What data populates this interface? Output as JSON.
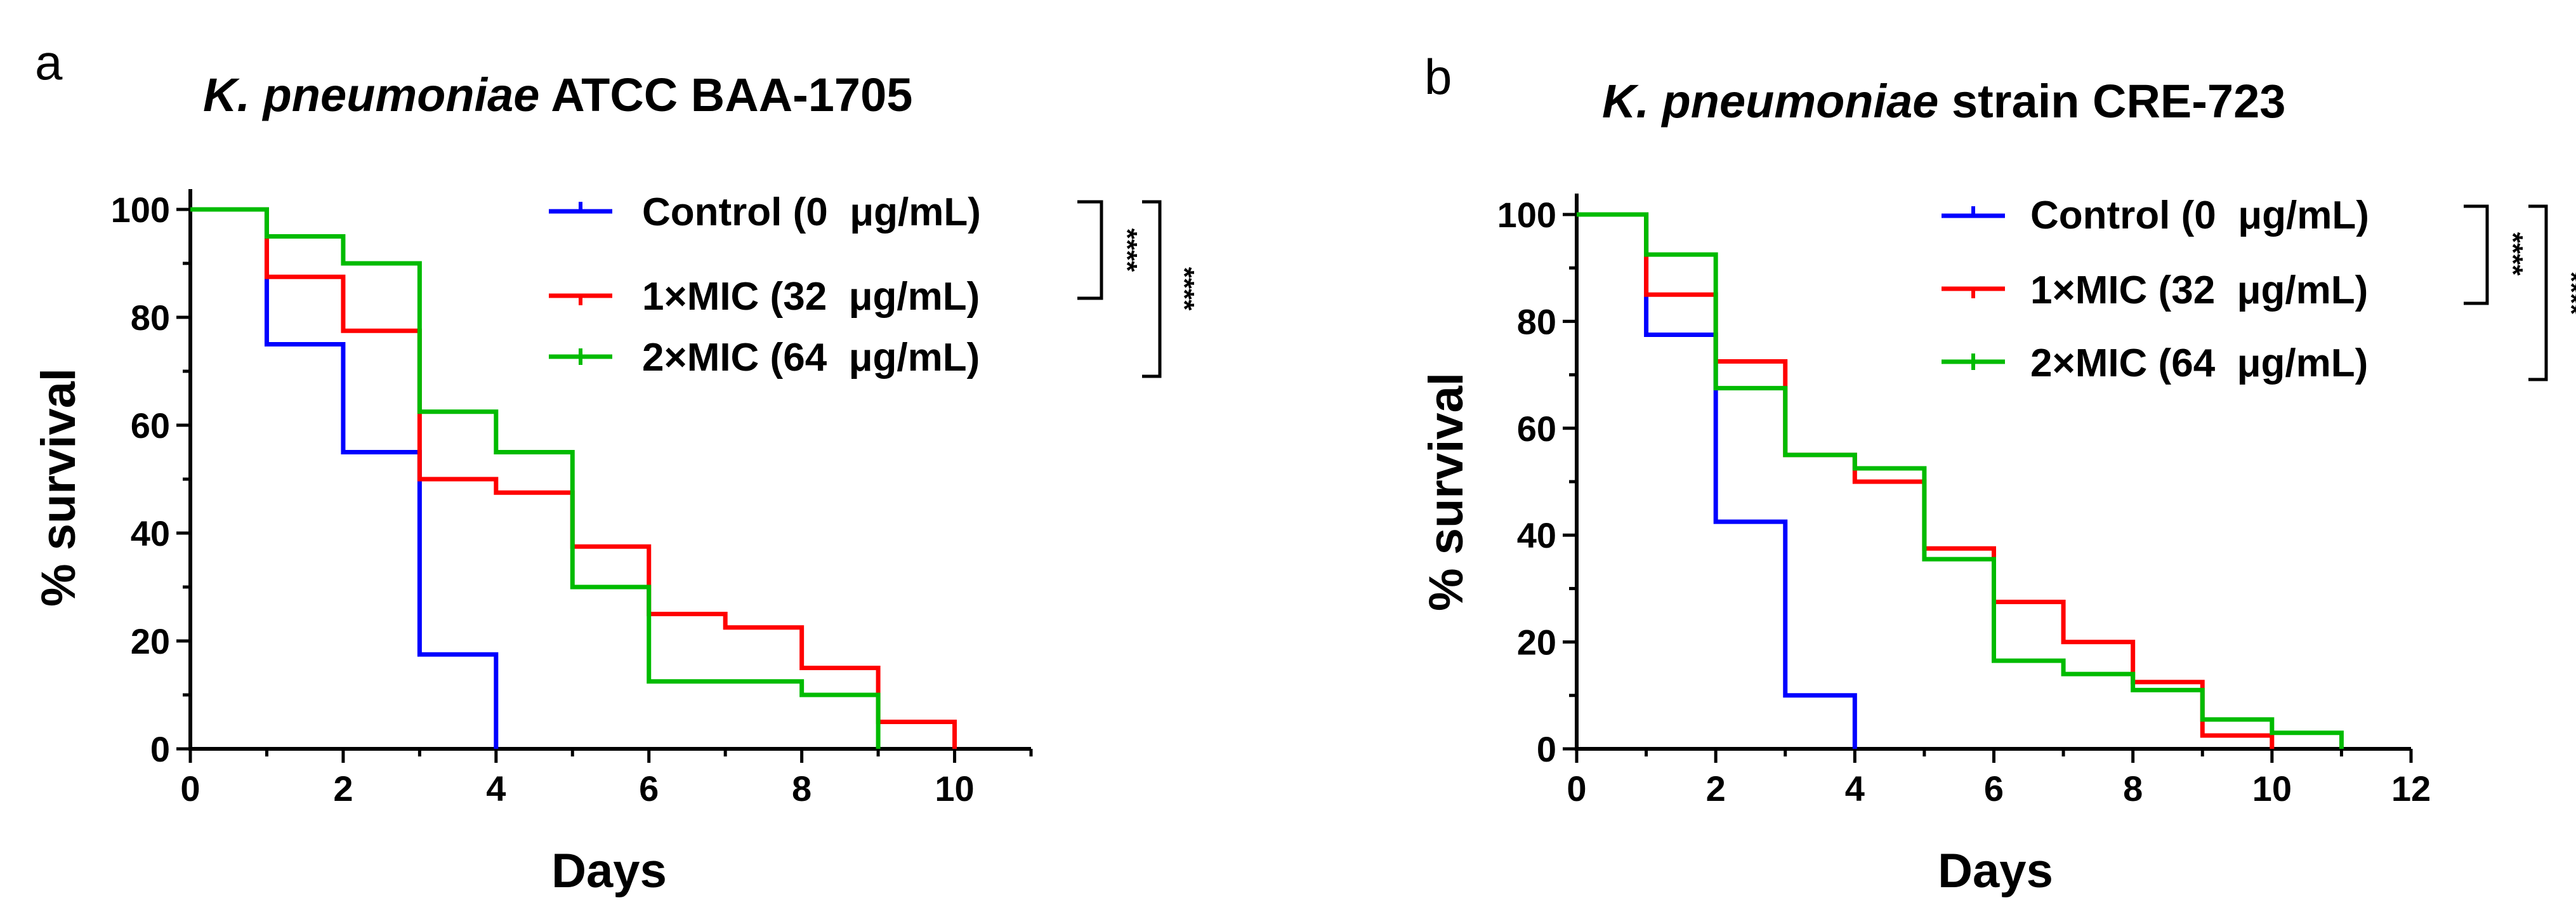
{
  "chart_data": [
    {
      "panel_label": "a",
      "type": "line",
      "style": "step (Kaplan-Meier survival)",
      "title_italic": "K. pneumoniae",
      "title_rest": " ATCC BAA-1705",
      "xlabel": "Days",
      "ylabel": "% survival",
      "xlim": [
        0,
        11
      ],
      "ylim": [
        0,
        100
      ],
      "xticks": [
        0,
        2,
        4,
        6,
        8,
        10
      ],
      "yticks": [
        0,
        20,
        40,
        60,
        80,
        100
      ],
      "legend_position": "top-right",
      "series": [
        {
          "name": "Control (0  μg/mL)",
          "color": "#0000ff",
          "x": [
            0,
            1,
            2,
            3,
            4
          ],
          "y": [
            100,
            75,
            55,
            17.5,
            0
          ]
        },
        {
          "name": "1×MIC (32  μg/mL)",
          "color": "#ff0000",
          "x": [
            0,
            1,
            2,
            3,
            4,
            5,
            6,
            7,
            8,
            9,
            10
          ],
          "y": [
            100,
            87.5,
            77.5,
            50,
            47.5,
            37.5,
            25,
            22.5,
            15,
            5,
            0
          ]
        },
        {
          "name": "2×MIC (64  μg/mL)",
          "color": "#00bb00",
          "x": [
            0,
            1,
            2,
            3,
            4,
            5,
            6,
            8,
            9
          ],
          "y": [
            100,
            95,
            90,
            62.5,
            55,
            30,
            12.5,
            10,
            0
          ]
        }
      ],
      "significance": [
        {
          "label": "****",
          "from": "Control (0  μg/mL)",
          "to": "1×MIC (32  μg/mL)"
        },
        {
          "label": "****",
          "from": "Control (0  μg/mL)",
          "to": "2×MIC (64  μg/mL)"
        }
      ]
    },
    {
      "panel_label": "b",
      "type": "line",
      "style": "step (Kaplan-Meier survival)",
      "title_italic": "K. pneumoniae",
      "title_rest": " strain CRE-723",
      "xlabel": "Days",
      "ylabel": "% survival",
      "xlim": [
        0,
        12
      ],
      "ylim": [
        0,
        100
      ],
      "xticks": [
        0,
        2,
        4,
        6,
        8,
        10,
        12
      ],
      "yticks": [
        0,
        20,
        40,
        60,
        80,
        100
      ],
      "legend_position": "top-right",
      "series": [
        {
          "name": "Control (0  μg/mL)",
          "color": "#0000ff",
          "x": [
            0,
            1,
            2,
            3,
            4
          ],
          "y": [
            100,
            77.5,
            42.5,
            10,
            0
          ]
        },
        {
          "name": "1×MIC (32  μg/mL)",
          "color": "#ff0000",
          "x": [
            0,
            1,
            2,
            3,
            4,
            5,
            6,
            7,
            8,
            9,
            10
          ],
          "y": [
            100,
            85,
            72.5,
            55,
            50,
            37.5,
            27.5,
            20,
            12.5,
            2.5,
            0
          ]
        },
        {
          "name": "2×MIC (64  μg/mL)",
          "color": "#00bb00",
          "x": [
            0,
            1,
            2,
            3,
            4,
            5,
            6,
            7,
            8,
            9,
            10,
            11
          ],
          "y": [
            100,
            92.5,
            67.5,
            55,
            52.5,
            35.5,
            16.5,
            14,
            11,
            5.5,
            3,
            0
          ]
        }
      ],
      "significance": [
        {
          "label": "****",
          "from": "Control (0  μg/mL)",
          "to": "1×MIC (32  μg/mL)"
        },
        {
          "label": "****",
          "from": "Control (0  μg/mL)",
          "to": "2×MIC (64  μg/mL)"
        }
      ]
    }
  ]
}
